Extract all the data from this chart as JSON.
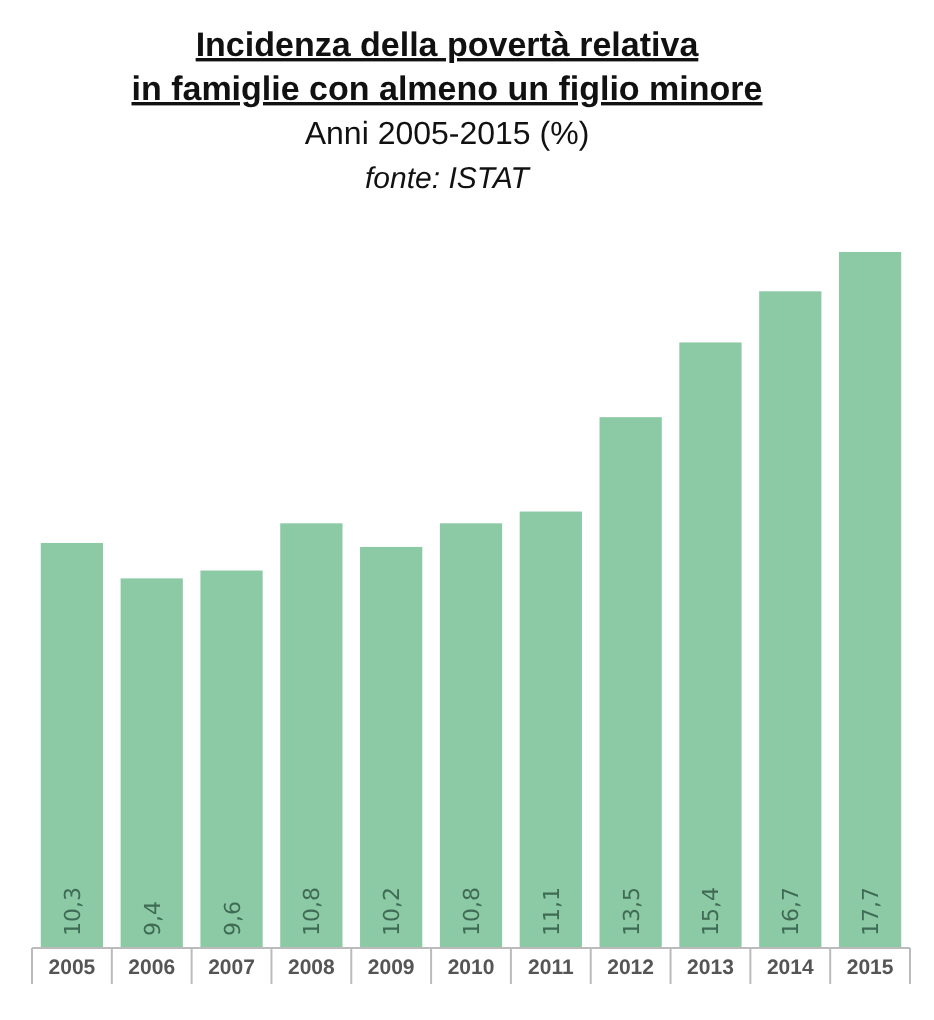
{
  "chart_data": {
    "type": "bar",
    "title": "Incidenza della povertà relativa\nin famiglie con almeno un figlio minore",
    "subtitle": "Anni 2005-2015 (%)",
    "annotations": [
      "fonte: ISTAT"
    ],
    "categories": [
      "2005",
      "2006",
      "2007",
      "2008",
      "2009",
      "2010",
      "2011",
      "2012",
      "2013",
      "2014",
      "2015"
    ],
    "values": [
      10.3,
      9.4,
      9.6,
      10.8,
      10.2,
      10.8,
      11.1,
      13.5,
      15.4,
      16.7,
      17.7
    ],
    "value_labels": [
      "10,3",
      "9,4",
      "9,6",
      "10,8",
      "10,2",
      "10,8",
      "11,1",
      "13,5",
      "15,4",
      "16,7",
      "17,7"
    ],
    "color": "#8ccaa6"
  }
}
